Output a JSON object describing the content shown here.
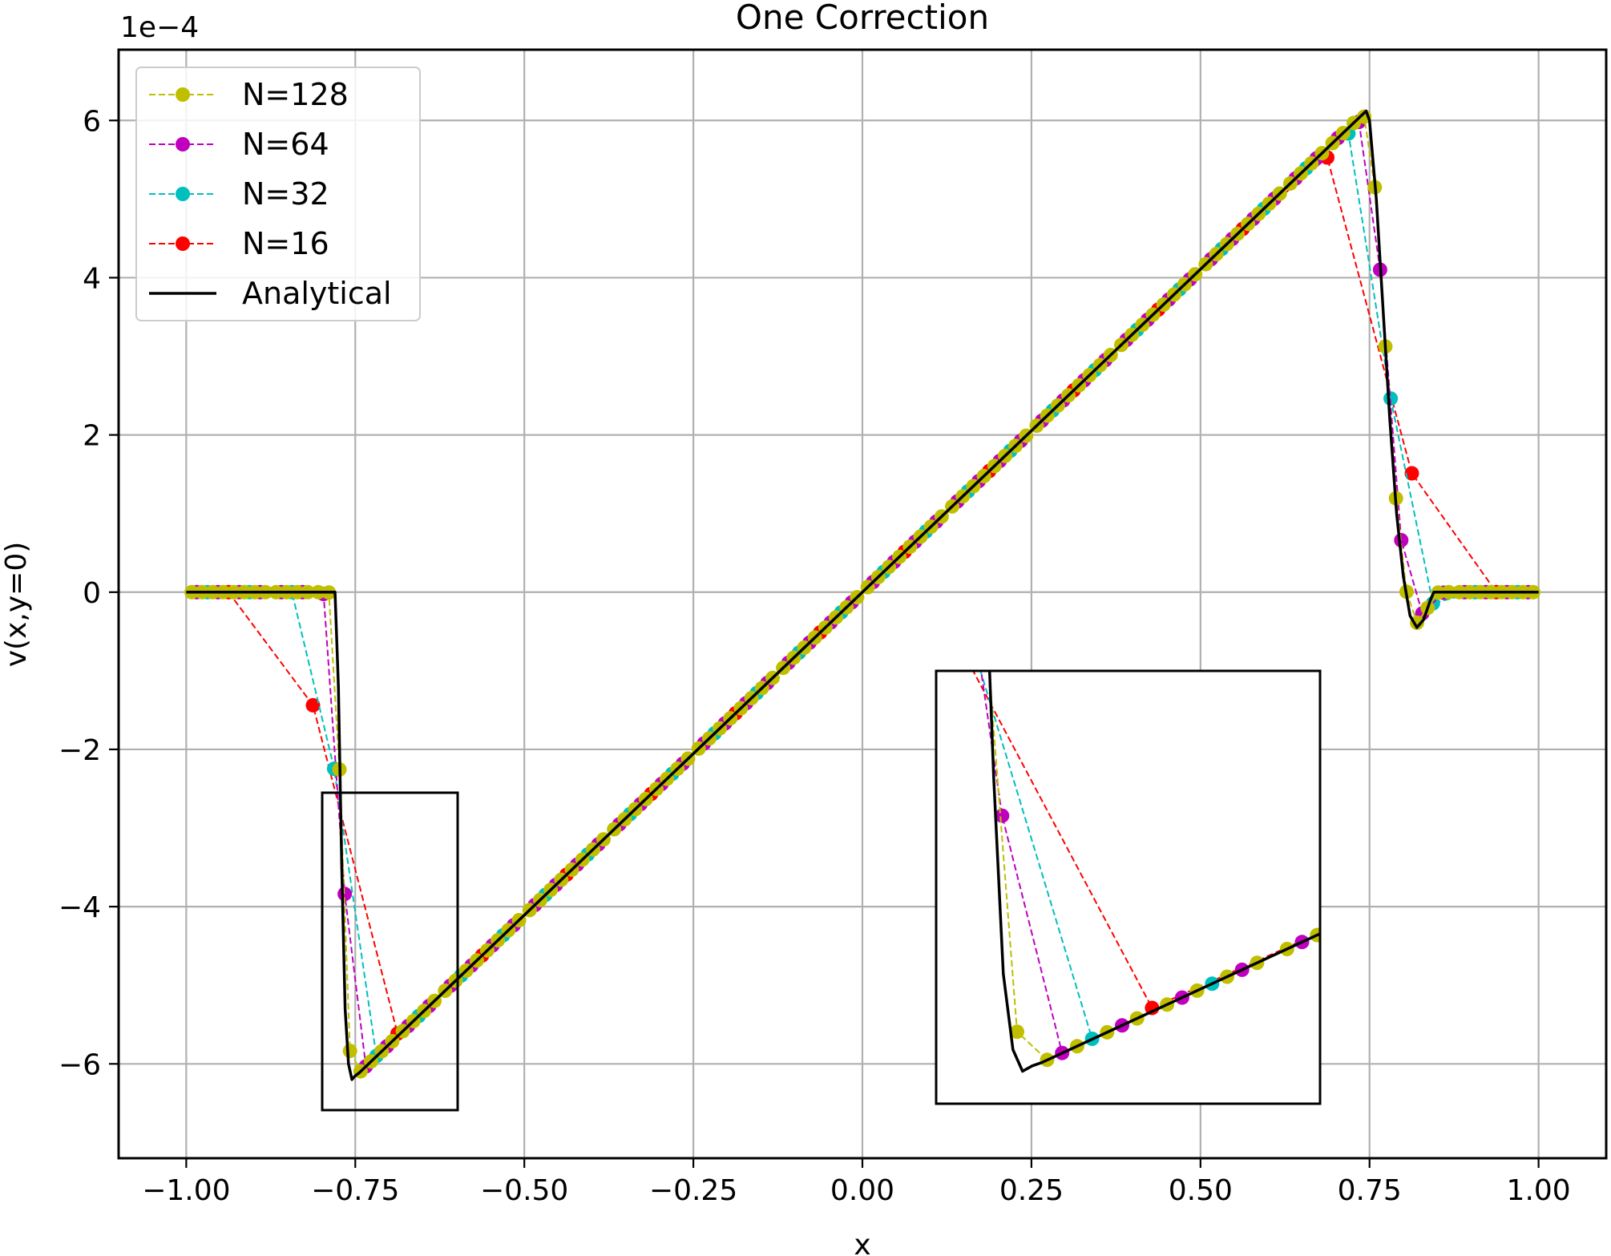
{
  "chart_data": {
    "type": "line",
    "title": "One Correction",
    "xlabel": "x",
    "ylabel": "v(x,y=0)",
    "y_offset_text": "1e−4",
    "xlim": [
      -1.1,
      1.1
    ],
    "ylim": [
      -7.2,
      6.9
    ],
    "x_ticks": [
      -1.0,
      -0.75,
      -0.5,
      -0.25,
      0.0,
      0.25,
      0.5,
      0.75,
      1.0
    ],
    "x_tick_labels": [
      "−1.00",
      "−0.75",
      "−0.50",
      "−0.25",
      "0.00",
      "0.25",
      "0.50",
      "0.75",
      "1.00"
    ],
    "y_ticks": [
      -6,
      -4,
      -2,
      0,
      2,
      4,
      6
    ],
    "y_tick_labels": [
      "−6",
      "−4",
      "−2",
      "0",
      "2",
      "4",
      "6"
    ],
    "grid": true,
    "legend_position": "top-left",
    "series": [
      {
        "name": "N=128",
        "color": "#bfbf00",
        "style": "dashed-markers",
        "n": 128
      },
      {
        "name": "N=64",
        "color": "#bf00bf",
        "style": "dashed-markers",
        "n": 64
      },
      {
        "name": "N=32",
        "color": "#00bfbf",
        "style": "dashed-markers",
        "n": 32
      },
      {
        "name": "N=16",
        "color": "#ff0000",
        "style": "dashed-markers",
        "n": 16
      },
      {
        "name": "Analytical",
        "color": "#000000",
        "style": "solid"
      }
    ],
    "analytical": {
      "x": [
        -1.0,
        -0.78,
        -0.775,
        -0.77,
        -0.765,
        -0.76,
        -0.755,
        -0.75,
        -0.745,
        0.745,
        0.75,
        0.76,
        0.77,
        0.78,
        0.79,
        0.8,
        0.81,
        0.82,
        0.83,
        0.84,
        0.845,
        1.0
      ],
      "y": [
        0,
        0,
        -1.2,
        -3.5,
        -5.3,
        -6.0,
        -6.2,
        -6.15,
        -6.12,
        6.12,
        6.0,
        5.0,
        3.6,
        2.2,
        1.0,
        0.2,
        -0.3,
        -0.45,
        -0.35,
        -0.1,
        0,
        0
      ]
    },
    "inset": {
      "xlim": [
        -0.8,
        -0.6
      ],
      "ylim": [
        -6.5,
        -2.5
      ],
      "show_ticks": false
    }
  }
}
